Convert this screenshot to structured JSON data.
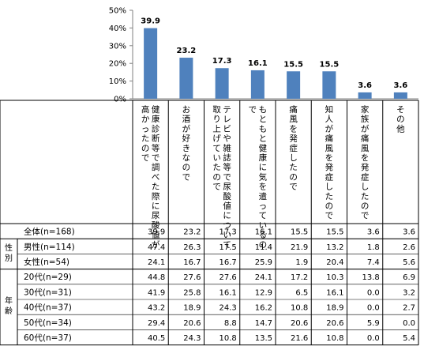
{
  "chart_data": {
    "type": "bar",
    "ylim": [
      0,
      50
    ],
    "yticks": [
      "0%",
      "10%",
      "20%",
      "30%",
      "40%",
      "50%"
    ],
    "ytick_values": [
      0,
      10,
      20,
      30,
      40,
      50
    ],
    "bar_color": "#4f81bd",
    "categories": [
      "健康診断等で調べた際に尿酸値が高かったので",
      "お酒が好きなので",
      "テレビや雑誌等で尿酸値について取り上げていたので",
      "もともと健康に気を遣っているので",
      "痛風を発症したので",
      "知人が痛風を発症したので",
      "家族が痛風を発症したので",
      "その他"
    ],
    "values": [
      39.9,
      23.2,
      17.3,
      16.1,
      15.5,
      15.5,
      3.6,
      3.6
    ],
    "data_labels": [
      "39.9",
      "23.2",
      "17.3",
      "16.1",
      "15.5",
      "15.5",
      "3.6",
      "3.6"
    ]
  },
  "table": {
    "groups": [
      {
        "label": "性別",
        "chars": [
          "性",
          "別"
        ]
      },
      {
        "label": "年齢",
        "chars": [
          "年",
          "齢"
        ]
      }
    ],
    "rows": [
      {
        "label": "全体(n=168)",
        "values": [
          "39.9",
          "23.2",
          "17.3",
          "16.1",
          "15.5",
          "15.5",
          "3.6",
          "3.6"
        ]
      },
      {
        "label": "男性(n=114)",
        "values": [
          "47.4",
          "26.3",
          "17.5",
          "11.4",
          "21.9",
          "13.2",
          "1.8",
          "2.6"
        ]
      },
      {
        "label": "女性(n=54)",
        "values": [
          "24.1",
          "16.7",
          "16.7",
          "25.9",
          "1.9",
          "20.4",
          "7.4",
          "5.6"
        ]
      },
      {
        "label": "20代(n=29)",
        "values": [
          "44.8",
          "27.6",
          "27.6",
          "24.1",
          "17.2",
          "10.3",
          "13.8",
          "6.9"
        ]
      },
      {
        "label": "30代(n=31)",
        "values": [
          "41.9",
          "25.8",
          "16.1",
          "12.9",
          "6.5",
          "16.1",
          "0.0",
          "3.2"
        ]
      },
      {
        "label": "40代(n=37)",
        "values": [
          "43.2",
          "18.9",
          "24.3",
          "16.2",
          "10.8",
          "18.9",
          "0.0",
          "2.7"
        ]
      },
      {
        "label": "50代(n=34)",
        "values": [
          "29.4",
          "20.6",
          "8.8",
          "14.7",
          "20.6",
          "20.6",
          "5.9",
          "0.0"
        ]
      },
      {
        "label": "60代(n=37)",
        "values": [
          "40.5",
          "24.3",
          "10.8",
          "13.5",
          "21.6",
          "10.8",
          "0.0",
          "5.4"
        ]
      }
    ]
  }
}
